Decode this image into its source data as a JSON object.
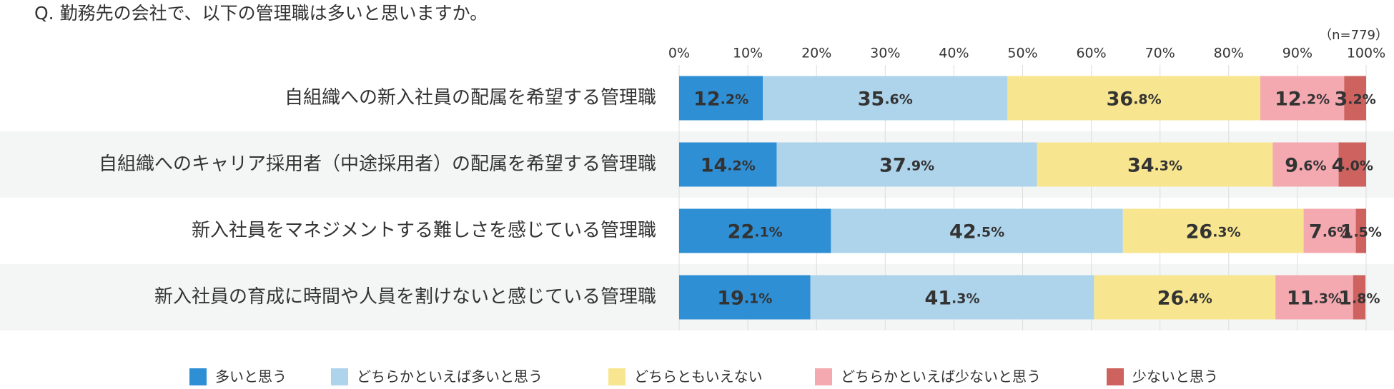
{
  "chart_data": {
    "type": "stacked-bar-horizontal",
    "title": "Q. 勤務先の会社で、以下の管理職は多いと思いますか。",
    "subtitle": "（n=779）",
    "categories": [
      "自組織への新入社員の配属を希望する管理職",
      "自組織へのキャリア採用者（中途採用者）の配属を希望する管理職",
      "新入社員をマネジメントする難しさを感じている管理職",
      "新入社員の育成に時間や人員を割けないと感じている管理職"
    ],
    "series": [
      {
        "name": "多いと思う",
        "color": "#2f8fd5",
        "values": [
          12.2,
          14.2,
          22.1,
          19.1
        ],
        "value_labels": [
          "12.2%",
          "14.2%",
          "22.1%",
          "19.1%"
        ]
      },
      {
        "name": "どちらかといえば多いと思う",
        "color": "#aed4ec",
        "values": [
          35.6,
          37.9,
          42.5,
          41.3
        ],
        "value_labels": [
          "35.6%",
          "37.9%",
          "42.5%",
          "41.3%"
        ]
      },
      {
        "name": "どちらともいえない",
        "color": "#f7e68f",
        "values": [
          36.8,
          34.3,
          26.3,
          26.4
        ],
        "value_labels": [
          "36.8%",
          "34.3%",
          "26.3%",
          "26.4%"
        ]
      },
      {
        "name": "どちらかといえば少ないと思う",
        "color": "#f4a9b1",
        "values": [
          12.2,
          9.6,
          7.6,
          11.3
        ],
        "value_labels": [
          "12.2%",
          "9.6%",
          "7.6%",
          "11.3%"
        ]
      },
      {
        "name": "少ないと思う",
        "color": "#cd625f",
        "values": [
          3.2,
          4.0,
          1.5,
          1.8
        ],
        "value_labels": [
          "3.2%",
          "4.0%",
          "1.5%",
          "1.8%"
        ]
      }
    ],
    "xlim": [
      0,
      100
    ],
    "xticks": [
      {
        "value": 0,
        "label": "0%"
      },
      {
        "value": 10,
        "label": "10%"
      },
      {
        "value": 20,
        "label": "20%"
      },
      {
        "value": 30,
        "label": "30%"
      },
      {
        "value": 40,
        "label": "40%"
      },
      {
        "value": 50,
        "label": "50%"
      },
      {
        "value": 60,
        "label": "60%"
      },
      {
        "value": 70,
        "label": "70%"
      },
      {
        "value": 80,
        "label": "80%"
      },
      {
        "value": 90,
        "label": "90%"
      },
      {
        "value": 100,
        "label": "100%"
      }
    ],
    "grid": true,
    "legend": "bottom"
  }
}
